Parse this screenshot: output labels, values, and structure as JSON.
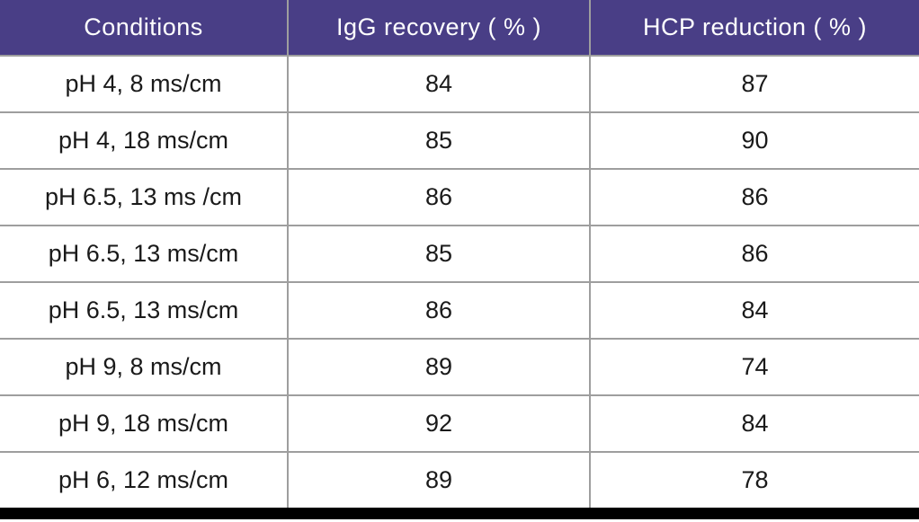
{
  "chart_data": {
    "type": "table",
    "columns": [
      "Conditions",
      "IgG recovery ( % )",
      "HCP reduction ( % )"
    ],
    "rows": [
      [
        "pH 4, 8 ms/cm",
        "84",
        "87"
      ],
      [
        "pH 4, 18 ms/cm",
        "85",
        "90"
      ],
      [
        "pH 6.5, 13 ms /cm",
        "86",
        "86"
      ],
      [
        "pH 6.5, 13 ms/cm",
        "85",
        "86"
      ],
      [
        "pH 6.5, 13 ms/cm",
        "86",
        "84"
      ],
      [
        "pH 9, 8 ms/cm",
        "89",
        "74"
      ],
      [
        "pH 9, 18 ms/cm",
        "92",
        "84"
      ],
      [
        "pH 6, 12 ms/cm",
        "89",
        "78"
      ]
    ],
    "layout": {
      "grid": true,
      "header_row": true,
      "bottom_border": "thick-black"
    }
  },
  "colors": {
    "header_bg": "#493E86",
    "header_text": "#FFFFFF",
    "grid_line": "#9E9E9E",
    "cell_text": "#1A1A1A",
    "bottom_bar": "#000000"
  }
}
